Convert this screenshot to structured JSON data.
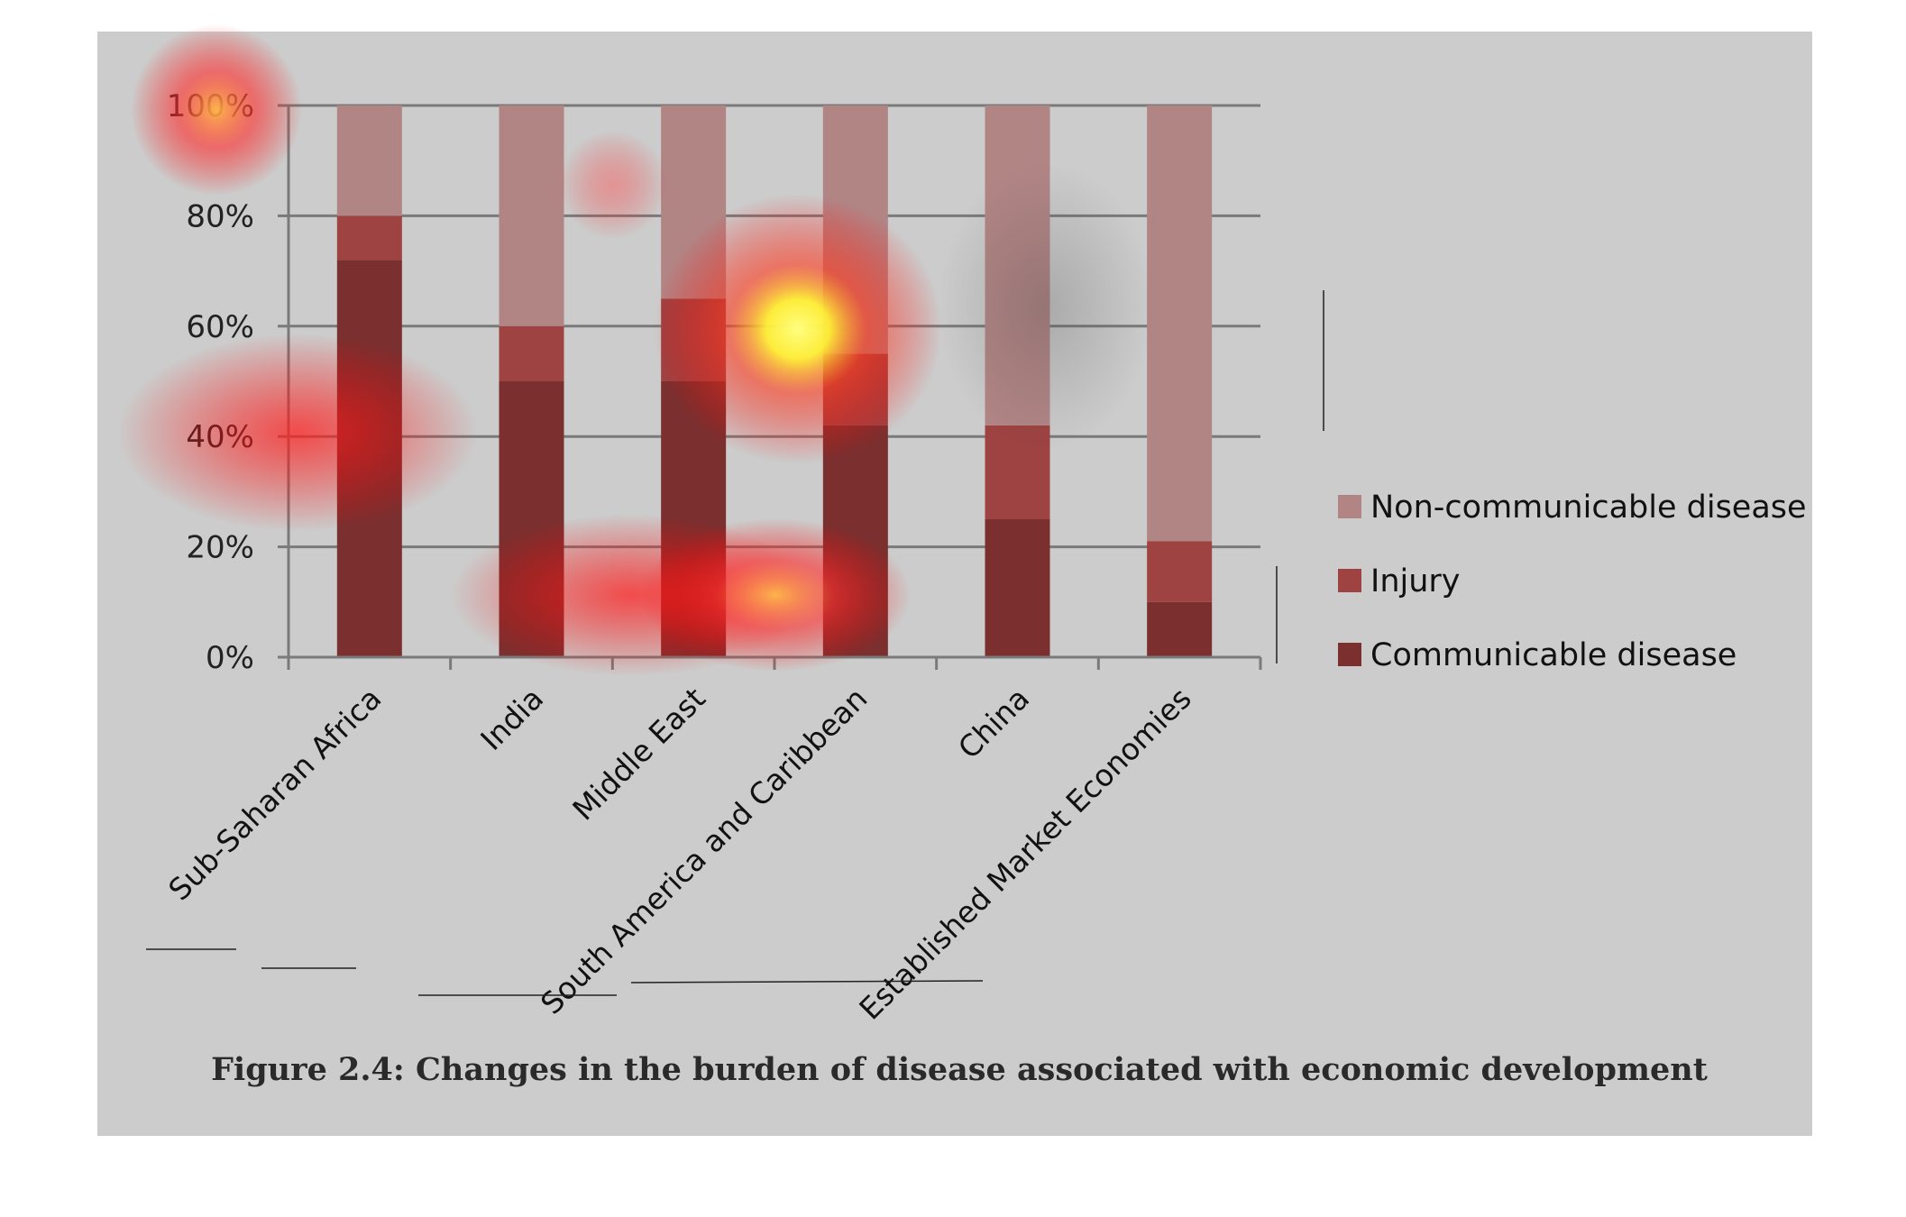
{
  "chart_data": {
    "type": "bar",
    "stacked": true,
    "percent": true,
    "categories": [
      "Sub-Saharan Africa",
      "India",
      "Middle East",
      "South America and Caribbean",
      "China",
      "Established Market Economies"
    ],
    "series": [
      {
        "name": "Communicable disease",
        "color": "#7b2f2f",
        "values": [
          72,
          50,
          50,
          42,
          25,
          10
        ]
      },
      {
        "name": "Injury",
        "color": "#9e4242",
        "values": [
          8,
          10,
          15,
          13,
          17,
          11
        ]
      },
      {
        "name": "Non-communicable disease",
        "color": "#b28585",
        "values": [
          20,
          40,
          35,
          45,
          58,
          79
        ]
      }
    ],
    "y_ticks": [
      "0%",
      "20%",
      "40%",
      "60%",
      "80%",
      "100%"
    ],
    "ylim": [
      0,
      100
    ],
    "grid": true,
    "legend_position": "right",
    "legend_order": [
      "Non-communicable disease",
      "Injury",
      "Communicable disease"
    ],
    "caption": "Figure 2.4: Changes in the burden of disease associated with economic development",
    "background_color": "#cccccc",
    "heatmap_overlay": true
  }
}
